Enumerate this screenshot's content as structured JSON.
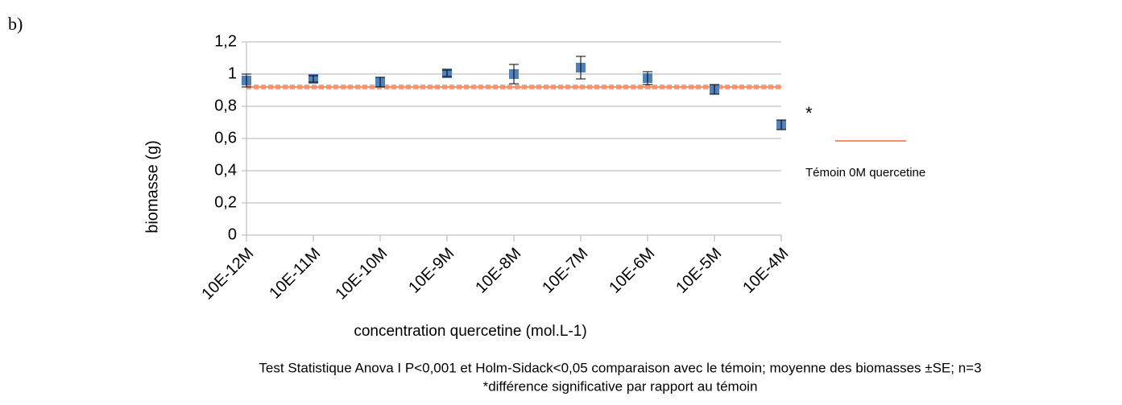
{
  "chart_data": {
    "type": "errorbar",
    "panel_label": "b)",
    "y_label": "biomasse (g)",
    "x_label": "concentration quercetine (mol.L-1)",
    "categories": [
      "10E-12M",
      "10E-11M",
      "10E-10M",
      "10E-9M",
      "10E-8M",
      "10E-7M",
      "10E-6M",
      "10E-5M",
      "10E-4M"
    ],
    "values": [
      0.96,
      0.97,
      0.95,
      1.005,
      1.0,
      1.04,
      0.975,
      0.905,
      0.685
    ],
    "errors": [
      0.04,
      0.02,
      0.03,
      0.02,
      0.06,
      0.07,
      0.04,
      0.03,
      0.03
    ],
    "color": "#4f81bd",
    "reference": {
      "name": "Témoin 0M quercetine",
      "value": 0.92,
      "error": 0.01,
      "color": "#ff6633"
    },
    "annotation": "*",
    "ylim": [
      0,
      1.2
    ],
    "yticks": [
      0,
      {
        "value": 0.2,
        "label": "0,2"
      },
      {
        "value": 0.4,
        "label": "0,4"
      },
      {
        "value": 0.6,
        "label": "0,6"
      },
      {
        "value": 0.8,
        "label": "0,8"
      },
      1,
      {
        "value": 1.2,
        "label": "1,2"
      }
    ],
    "grid": true,
    "footnotes": [
      "Test Statistique Anova I P<0,001 et Holm-Sidack<0,05 comparaison avec le témoin; moyenne des biomasses ±SE; n=3",
      "*différence significative par rapport au témoin"
    ]
  }
}
